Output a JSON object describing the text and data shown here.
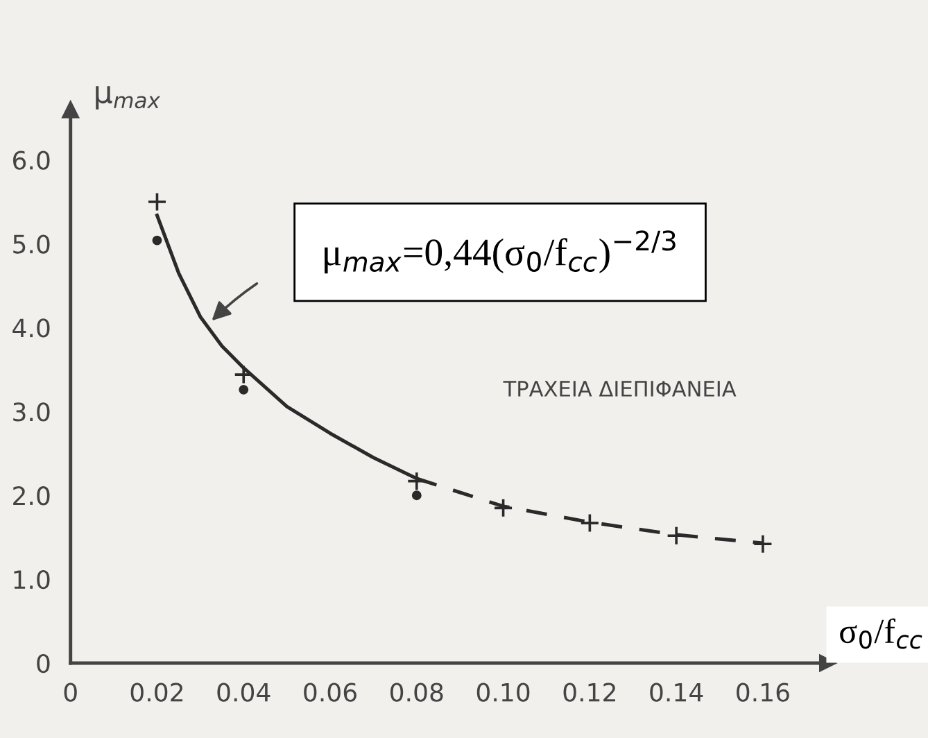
{
  "chart_data": {
    "type": "scatter",
    "xlabel": "σ$_{0}$/f$_{cc}$",
    "ylabel": "μ$_{max}$",
    "xlim": [
      0,
      0.175
    ],
    "ylim": [
      0,
      6.6
    ],
    "xticks": [
      0,
      {
        "value": 0.02,
        "label": "0.02"
      },
      {
        "value": 0.04,
        "label": "0.04"
      },
      {
        "value": 0.06,
        "label": "0.06"
      },
      {
        "value": 0.08,
        "label": "0.08"
      },
      {
        "value": 0.1,
        "label": "0.10"
      },
      {
        "value": 0.12,
        "label": "0.12"
      },
      {
        "value": 0.14,
        "label": "0.14"
      },
      {
        "value": 0.16,
        "label": "0.16"
      }
    ],
    "yticks": [
      0,
      {
        "value": 1,
        "label": "1.0"
      },
      {
        "value": 2,
        "label": "2.0"
      },
      {
        "value": 3,
        "label": "3.0"
      },
      {
        "value": 4,
        "label": "4.0"
      },
      {
        "value": 5,
        "label": "5.0"
      },
      {
        "value": 6,
        "label": "6.0"
      }
    ],
    "grid": false,
    "legend": false,
    "series": [
      {
        "marker": "cross",
        "color": "#2a2a2a",
        "x": [
          0.02,
          0.04,
          0.08,
          0.1,
          0.12,
          0.14,
          0.16
        ],
        "values": [
          5.5,
          3.44,
          2.17,
          1.85,
          1.67,
          1.52,
          1.42
        ]
      },
      {
        "marker": "circle",
        "color": "#2a2a2a",
        "x": [
          0.02,
          0.04,
          0.08
        ],
        "values": [
          5.04,
          3.26,
          2.0
        ]
      },
      {
        "type": "line",
        "line_style": "solid",
        "color": "#2a2a2a",
        "x": [
          0.02,
          0.025,
          0.03,
          0.035,
          0.04,
          0.05,
          0.06,
          0.07,
          0.08
        ],
        "values": [
          5.34,
          4.65,
          4.13,
          3.78,
          3.52,
          3.06,
          2.74,
          2.45,
          2.2
        ]
      },
      {
        "type": "line",
        "line_style": "dashed",
        "color": "#2a2a2a",
        "x": [
          0.08,
          0.1,
          0.12,
          0.14,
          0.16
        ],
        "values": [
          2.2,
          1.87,
          1.68,
          1.53,
          1.43
        ]
      }
    ],
    "annotations": [
      "μ$_{max}$=0,44(σ$_{0}$/f$_{cc}$)$^{−2/3}$",
      "ΤΡΑΧΕΙΑ ΔΙΕΠΙΦΑΝΕΙΑ"
    ]
  }
}
